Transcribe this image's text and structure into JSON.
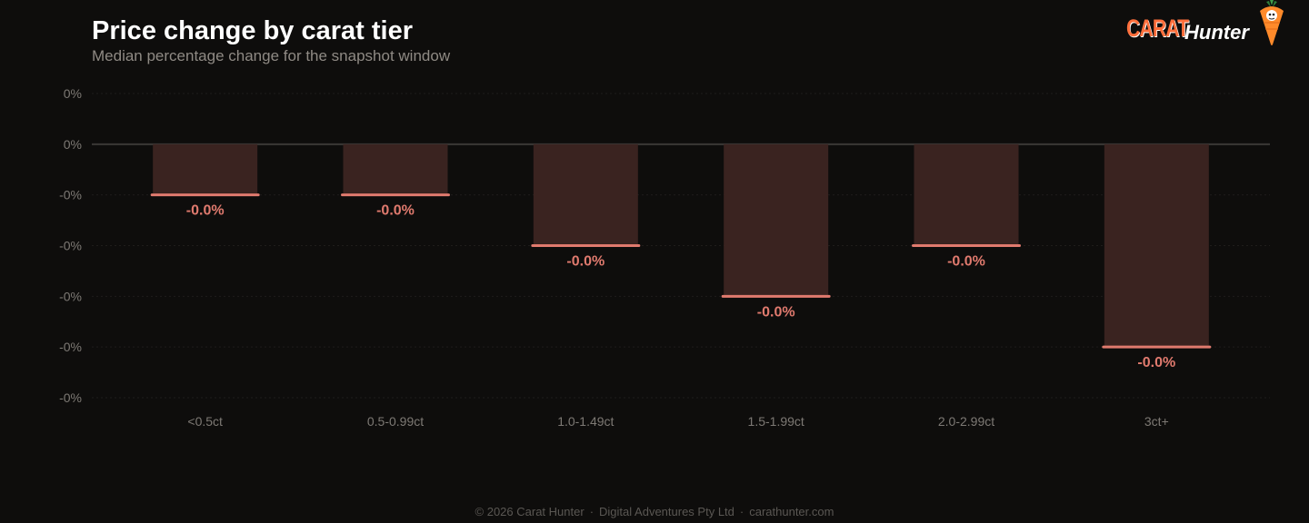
{
  "chart_data": {
    "type": "bar",
    "title": "Price change by carat tier",
    "subtitle": "Median percentage change for the snapshot window",
    "categories": [
      "<0.5ct",
      "0.5-0.99ct",
      "1.0-1.49ct",
      "1.5-1.99ct",
      "2.0-2.99ct",
      "3ct+"
    ],
    "values": [
      -0.0001,
      -0.0001,
      -0.0002,
      -0.0003,
      -0.0002,
      -0.0004
    ],
    "value_labels": [
      "-0.0%",
      "-0.0%",
      "-0.0%",
      "-0.0%",
      "-0.0%",
      "-0.0%"
    ],
    "y_ticks": [
      0.0001,
      0,
      -0.0001,
      -0.0002,
      -0.0003,
      -0.0004,
      -0.0005
    ],
    "y_tick_labels": [
      "0%",
      "0%",
      "-0%",
      "-0%",
      "-0%",
      "-0%",
      "-0%"
    ],
    "ylim": [
      -0.0005,
      0.0001
    ],
    "xlabel": "",
    "ylabel": "",
    "grid": true,
    "colors": {
      "bar_fill": "#3a2320",
      "bar_edge": "#e07a6e",
      "value_label": "#e07a6e",
      "zero_line": "#3a3836",
      "grid": "#1f1d1b",
      "tick_label": "#7d7974"
    }
  },
  "brand": {
    "logo_word_1": "CARAT",
    "logo_word_2": "Hunter",
    "mascot_icon": "carrot-mascot-icon"
  },
  "footer": {
    "copyright": "© 2026 Carat Hunter",
    "company": "Digital Adventures Pty Ltd",
    "website": "carathunter.com",
    "separator": "·"
  }
}
